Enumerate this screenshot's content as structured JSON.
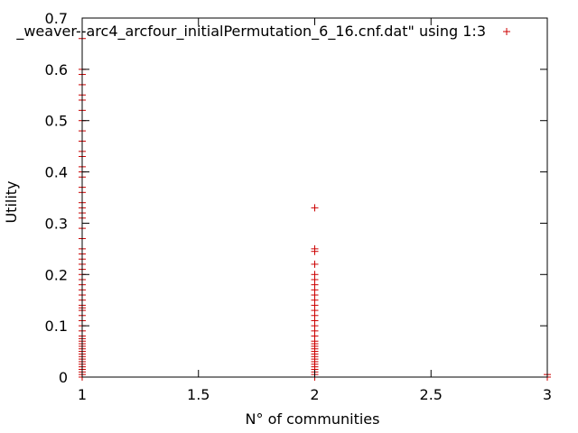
{
  "chart_data": {
    "type": "scatter",
    "title": "",
    "xlabel": "N° of communities",
    "ylabel": "Utility",
    "xlim": [
      1,
      3
    ],
    "ylim": [
      0,
      0.7
    ],
    "xticks": [
      1,
      1.5,
      2,
      2.5,
      3
    ],
    "xtick_labels": [
      "1",
      "1.5",
      "2",
      "2.5",
      "3"
    ],
    "yticks": [
      0,
      0.1,
      0.2,
      0.3,
      0.4,
      0.5,
      0.6,
      0.7
    ],
    "ytick_labels": [
      "0",
      "0.1",
      "0.2",
      "0.3",
      "0.4",
      "0.5",
      "0.6",
      "0.7"
    ],
    "grid": false,
    "legend_position": "top-right",
    "marker": "+",
    "series": [
      {
        "name": "_weaver--arc4_arcfour_initialPermutation_6_16.cnf.dat\" using 1:3",
        "color": "#cc0000",
        "points": [
          [
            1,
            0.0
          ],
          [
            1,
            0.005
          ],
          [
            1,
            0.01
          ],
          [
            1,
            0.015
          ],
          [
            1,
            0.02
          ],
          [
            1,
            0.025
          ],
          [
            1,
            0.03
          ],
          [
            1,
            0.035
          ],
          [
            1,
            0.04
          ],
          [
            1,
            0.045
          ],
          [
            1,
            0.05
          ],
          [
            1,
            0.055
          ],
          [
            1,
            0.06
          ],
          [
            1,
            0.065
          ],
          [
            1,
            0.07
          ],
          [
            1,
            0.075
          ],
          [
            1,
            0.08
          ],
          [
            1,
            0.09
          ],
          [
            1,
            0.1
          ],
          [
            1,
            0.11
          ],
          [
            1,
            0.12
          ],
          [
            1,
            0.13
          ],
          [
            1,
            0.135
          ],
          [
            1,
            0.14
          ],
          [
            1,
            0.15
          ],
          [
            1,
            0.16
          ],
          [
            1,
            0.17
          ],
          [
            1,
            0.18
          ],
          [
            1,
            0.19
          ],
          [
            1,
            0.2
          ],
          [
            1,
            0.21
          ],
          [
            1,
            0.22
          ],
          [
            1,
            0.23
          ],
          [
            1,
            0.24
          ],
          [
            1,
            0.25
          ],
          [
            1,
            0.27
          ],
          [
            1,
            0.29
          ],
          [
            1,
            0.31
          ],
          [
            1,
            0.32
          ],
          [
            1,
            0.33
          ],
          [
            1,
            0.34
          ],
          [
            1,
            0.36
          ],
          [
            1,
            0.37
          ],
          [
            1,
            0.39
          ],
          [
            1,
            0.4
          ],
          [
            1,
            0.41
          ],
          [
            1,
            0.43
          ],
          [
            1,
            0.44
          ],
          [
            1,
            0.46
          ],
          [
            1,
            0.48
          ],
          [
            1,
            0.5
          ],
          [
            1,
            0.52
          ],
          [
            1,
            0.54
          ],
          [
            1,
            0.55
          ],
          [
            1,
            0.57
          ],
          [
            1,
            0.59
          ],
          [
            1,
            0.6
          ],
          [
            1,
            0.66
          ],
          [
            2,
            0.0
          ],
          [
            2,
            0.005
          ],
          [
            2,
            0.01
          ],
          [
            2,
            0.015
          ],
          [
            2,
            0.02
          ],
          [
            2,
            0.025
          ],
          [
            2,
            0.03
          ],
          [
            2,
            0.035
          ],
          [
            2,
            0.04
          ],
          [
            2,
            0.045
          ],
          [
            2,
            0.05
          ],
          [
            2,
            0.055
          ],
          [
            2,
            0.06
          ],
          [
            2,
            0.065
          ],
          [
            2,
            0.07
          ],
          [
            2,
            0.08
          ],
          [
            2,
            0.09
          ],
          [
            2,
            0.1
          ],
          [
            2,
            0.11
          ],
          [
            2,
            0.12
          ],
          [
            2,
            0.13
          ],
          [
            2,
            0.14
          ],
          [
            2,
            0.15
          ],
          [
            2,
            0.16
          ],
          [
            2,
            0.17
          ],
          [
            2,
            0.18
          ],
          [
            2,
            0.19
          ],
          [
            2,
            0.2
          ],
          [
            2,
            0.22
          ],
          [
            2,
            0.245
          ],
          [
            2,
            0.25
          ],
          [
            2,
            0.33
          ],
          [
            3,
            0.0
          ],
          [
            3,
            0.005
          ]
        ]
      }
    ]
  }
}
